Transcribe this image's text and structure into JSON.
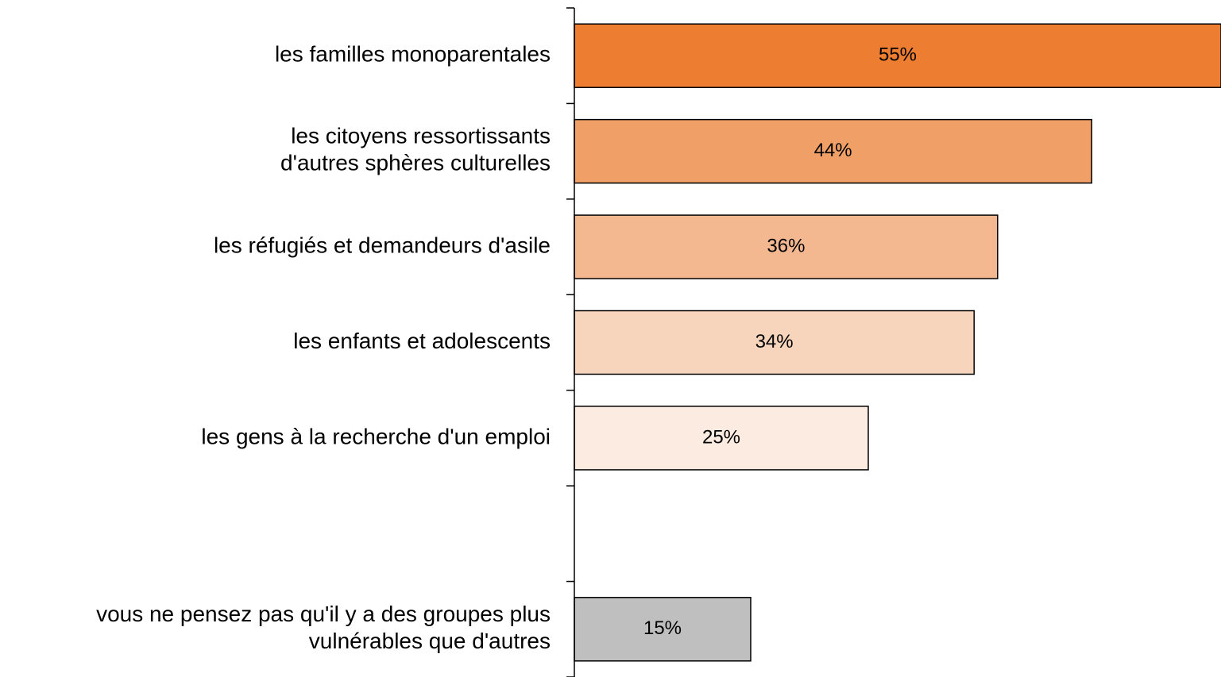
{
  "chart_data": {
    "type": "bar",
    "orientation": "horizontal",
    "categories": [
      "les familles monoparentales",
      "les citoyens ressortissants\nd'autres sphères culturelles",
      "les réfugiés et demandeurs d'asile",
      "les enfants et adolescents",
      "les gens à la recherche d'un emploi",
      null,
      "vous ne pensez pas qu'il y a des groupes plus\nvulnérables que d'autres"
    ],
    "values": [
      55,
      44,
      36,
      34,
      25,
      null,
      15
    ],
    "value_labels": [
      "55%",
      "44%",
      "36%",
      "34%",
      "25%",
      null,
      "15%"
    ],
    "colors": [
      "#ed7d31",
      "#f0a066",
      "#f4b890",
      "#f7d4bc",
      "#fcebe0",
      null,
      "#bfbfbf"
    ],
    "xlim": [
      0,
      55
    ]
  }
}
